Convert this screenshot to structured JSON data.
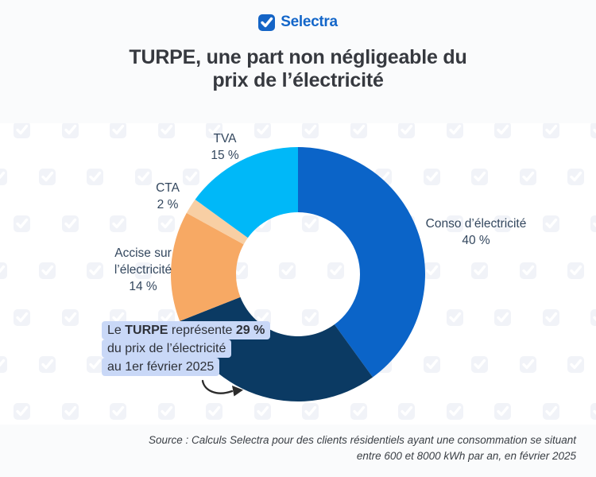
{
  "brand": {
    "name": "Selectra",
    "logo_icon": "checkmark-in-rounded-square",
    "logo_color": "#1366c9"
  },
  "title": {
    "line1": "TURPE, une part non négligeable du",
    "line2": "prix de l’électricité"
  },
  "chart_data": {
    "type": "pie",
    "subtype": "donut",
    "start_angle_deg": 0,
    "direction": "clockwise",
    "title": "TURPE, une part non négligeable du prix de l’électricité",
    "legend_position": "labels-around-chart",
    "segments": [
      {
        "label": "Conso d’électricité",
        "value_pct": 40,
        "color": "#0b64c8"
      },
      {
        "label": "TURPE",
        "value_pct": 29,
        "color": "#0b3a63"
      },
      {
        "label": "Accise sur l’électricité",
        "value_pct": 14,
        "color": "#f7a964"
      },
      {
        "label": "CTA",
        "value_pct": 2,
        "color": "#f8cfa4"
      },
      {
        "label": "TVA",
        "value_pct": 15,
        "color": "#00b8f8"
      }
    ]
  },
  "chart_labels": {
    "tva": {
      "name": "TVA",
      "pct": "15 %"
    },
    "cta": {
      "name": "CTA",
      "pct": "2 %"
    },
    "accise": {
      "name": "Accise sur",
      "name2": "l’électricité",
      "pct": "14 %"
    },
    "conso": {
      "name": "Conso d’électricité",
      "pct": "40 %"
    }
  },
  "callout": {
    "background": "#c9d8f7",
    "lines": [
      {
        "parts": [
          {
            "t": "Le ",
            "b": false
          },
          {
            "t": "TURPE",
            "b": true
          },
          {
            "t": " représente ",
            "b": false
          },
          {
            "t": "29 %",
            "b": true
          }
        ]
      },
      {
        "parts": [
          {
            "t": "du prix de l’électricité",
            "b": false
          }
        ]
      },
      {
        "parts": [
          {
            "t": "au 1er février 2025",
            "b": false
          }
        ]
      }
    ]
  },
  "source": {
    "line1": "Source : Calculs Selectra pour des clients résidentiels ayant une consommation se situant",
    "line2": "entre 600 et 8000 kWh par an, en février 2025"
  },
  "style_colors": {
    "header_footer_bg": "#fafbfc",
    "watermark_icon": "#f1f3f8",
    "label_text": "#33475e",
    "title_text": "#36393f",
    "arrow": "#2b2b2b"
  }
}
